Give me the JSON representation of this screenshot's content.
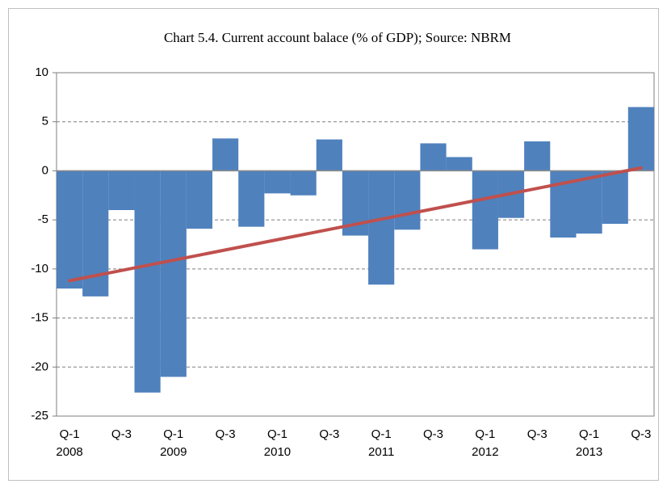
{
  "chart_data": {
    "type": "bar",
    "title": "Chart 5.4. Current account balace (% of GDP); Source: NBRM",
    "categories": [
      "Q-1",
      null,
      "Q-3",
      null,
      "Q-1",
      null,
      "Q-3",
      null,
      "Q-1",
      null,
      "Q-3",
      null,
      "Q-1",
      null,
      "Q-3",
      null,
      "Q-1",
      null,
      "Q-3",
      null,
      "Q-1",
      null,
      "Q-3"
    ],
    "years": [
      "2008",
      null,
      null,
      null,
      "2009",
      null,
      null,
      null,
      "2010",
      null,
      null,
      null,
      "2011",
      null,
      null,
      null,
      "2012",
      null,
      null,
      null,
      "2013",
      null,
      null
    ],
    "values": [
      -12,
      -12.8,
      -4,
      -22.6,
      -21,
      -5.9,
      3.3,
      -5.7,
      -2.3,
      -2.5,
      3.2,
      -6.6,
      -11.6,
      -6,
      2.8,
      1.4,
      -8,
      -4.8,
      3,
      -6.8,
      -6.4,
      -5.4,
      6.5
    ],
    "color": "#4f81bd",
    "trendline": {
      "color": "#c0504d",
      "start": -11.2,
      "end": 0.3
    },
    "ylim": [
      -25,
      10
    ],
    "yticks": [
      -25,
      -20,
      -15,
      -10,
      -5,
      0,
      5,
      10
    ],
    "grid": true
  }
}
